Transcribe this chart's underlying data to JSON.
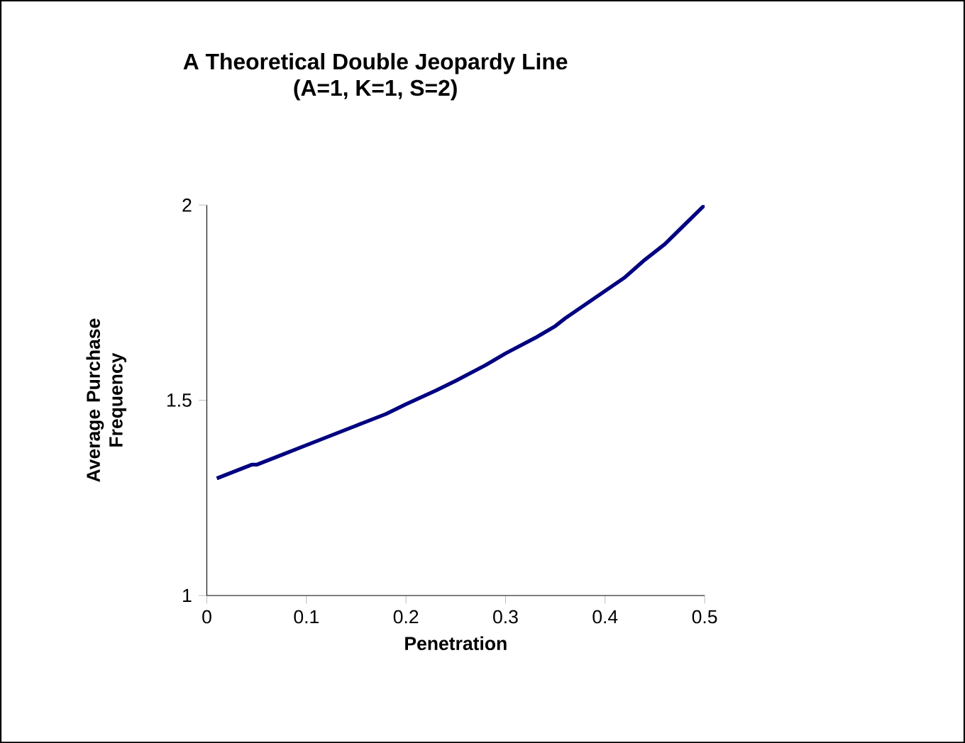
{
  "chart_data": {
    "type": "line",
    "title": "A Theoretical Double Jeopardy Line",
    "subtitle": "(A=1, K=1, S=2)",
    "xlabel": "Penetration",
    "ylabel": "Average Purchase Frequency",
    "x": [
      0.01,
      0.03,
      0.045,
      0.05,
      0.07,
      0.1,
      0.13,
      0.15,
      0.18,
      0.2,
      0.23,
      0.25,
      0.28,
      0.3,
      0.33,
      0.35,
      0.36,
      0.38,
      0.4,
      0.42,
      0.44,
      0.46,
      0.48,
      0.5
    ],
    "series": [
      {
        "color": "#000080",
        "values": [
          1.3,
          1.32,
          1.335,
          1.335,
          1.355,
          1.385,
          1.415,
          1.435,
          1.465,
          1.49,
          1.525,
          1.55,
          1.59,
          1.62,
          1.66,
          1.69,
          1.71,
          1.745,
          1.78,
          1.815,
          1.86,
          1.9,
          1.95,
          2.0
        ]
      }
    ],
    "xlim": [
      0,
      0.5
    ],
    "ylim": [
      1,
      2
    ],
    "xticks": [
      0,
      0.1,
      0.2,
      0.3,
      0.4,
      0.5
    ],
    "yticks": [
      1,
      1.5,
      2
    ],
    "grid": false,
    "marker": "none",
    "line_style": "solid"
  }
}
